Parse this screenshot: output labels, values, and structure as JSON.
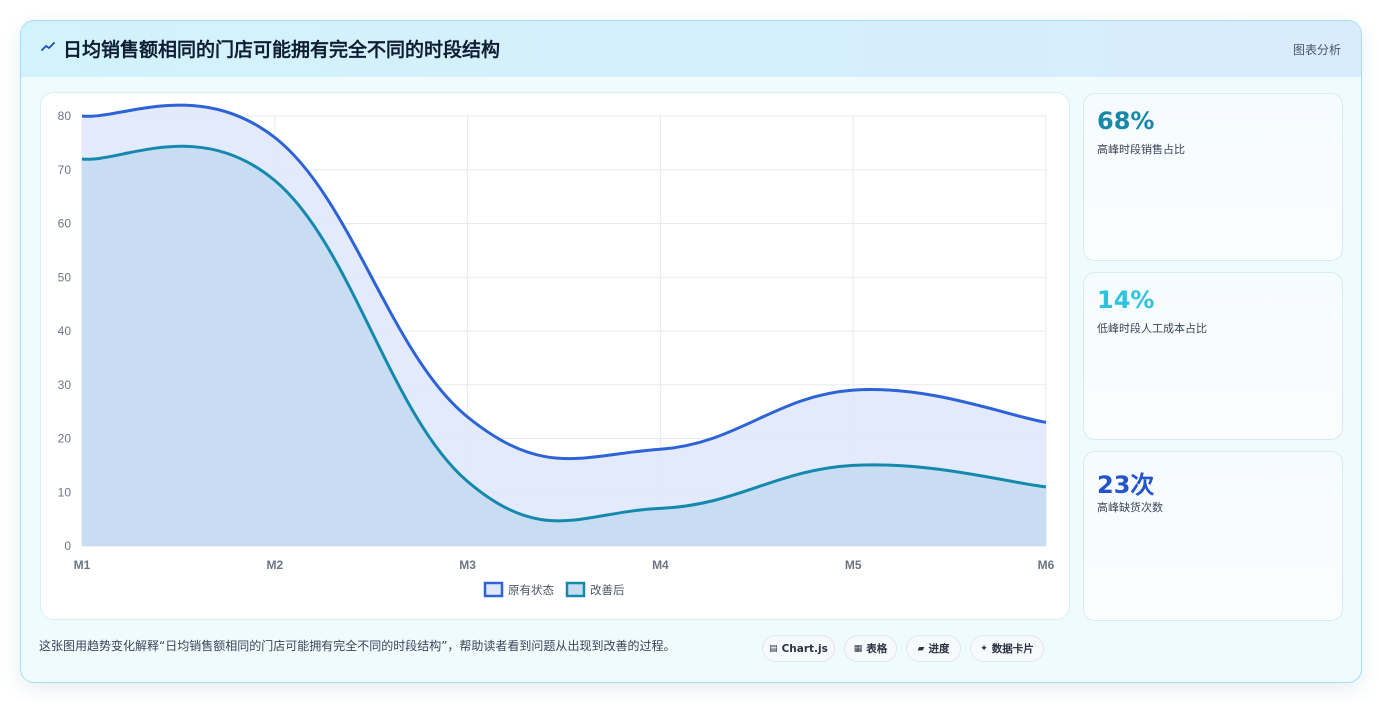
{
  "header": {
    "title": "日均销售额相同的门店可能拥有完全不同的时段结构",
    "tag": "图表分析"
  },
  "stats": [
    {
      "value": "68%",
      "label": "高峰时段销售占比",
      "color": "#1689a8"
    },
    {
      "value": "14%",
      "label": "低峰时段人工成本占比",
      "color": "#2dc3dc"
    },
    {
      "value": "23次",
      "label": "高峰缺货次数",
      "color": "#2255c9"
    }
  ],
  "footer": {
    "text": "这张图用趋势变化解释“日均销售额相同的门店可能拥有完全不同的时段结构”，帮助读者看到问题从出现到改善的过程。",
    "pills": [
      {
        "icon": "chart-icon",
        "glyph": "▤",
        "label": "Chart.js"
      },
      {
        "icon": "table-icon",
        "glyph": "▦",
        "label": "表格"
      },
      {
        "icon": "progress-icon",
        "glyph": "▰",
        "label": "进度"
      },
      {
        "icon": "sparkle-icon",
        "glyph": "✦",
        "label": "数据卡片"
      }
    ]
  },
  "chart_data": {
    "type": "area",
    "categories": [
      "M1",
      "M2",
      "M3",
      "M4",
      "M5",
      "M6"
    ],
    "ylim": [
      0,
      80
    ],
    "yticks": [
      0,
      10,
      20,
      30,
      40,
      50,
      60,
      70,
      80
    ],
    "grid": true,
    "legend_position": "bottom",
    "series": [
      {
        "name": "原有状态",
        "values": [
          80,
          76,
          24,
          18,
          29,
          23
        ],
        "color": "#2d63d6",
        "fill": "#dfe8fb"
      },
      {
        "name": "改善后",
        "values": [
          72,
          68,
          12,
          7,
          15,
          11
        ],
        "color": "#1589ad",
        "fill": "#c5dcf1"
      }
    ]
  }
}
